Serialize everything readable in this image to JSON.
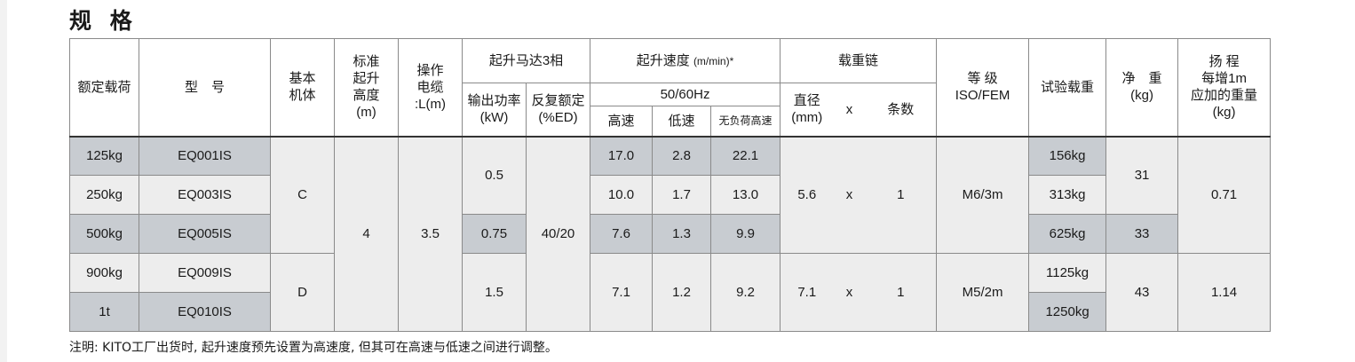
{
  "title": "规 格",
  "headers": {
    "rated_load": "额定载荷",
    "model": "型　号",
    "base_unit": [
      "基本",
      "机体"
    ],
    "std_lift": [
      "标准",
      "起升",
      "高度",
      "(m)"
    ],
    "cable": [
      "操作",
      "电缆",
      ":L(m)"
    ],
    "motor": "起升马达3相",
    "motor_power": [
      "输出功率",
      "(kW)"
    ],
    "motor_ed": [
      "反复额定",
      "(%ED)"
    ],
    "speed_main": "起升速度",
    "speed_unit": "(m/min)*",
    "speed_hz": "50/60Hz",
    "speed_high": "高速",
    "speed_low": "低速",
    "speed_noload": "无负荷高速",
    "chain": "载重链",
    "chain_dia": [
      "直径",
      "(mm)"
    ],
    "chain_x": "x",
    "chain_count": "条数",
    "grade": [
      "等 级",
      "ISO/FEM"
    ],
    "test_load": "试验载重",
    "weight": [
      "净　重",
      "(kg)"
    ],
    "extra": [
      "扬 程",
      "每增1m",
      "应加的重量",
      "(kg)"
    ]
  },
  "rows": [
    {
      "load": "125kg",
      "model": "EQ001IS",
      "high": "17.0",
      "low": "2.8",
      "noload": "22.1",
      "test": "156kg"
    },
    {
      "load": "250kg",
      "model": "EQ003IS",
      "high": "10.0",
      "low": "1.7",
      "noload": "13.0",
      "test": "313kg"
    },
    {
      "load": "500kg",
      "model": "EQ005IS",
      "high": "7.6",
      "low": "1.3",
      "noload": "9.9",
      "test": "625kg"
    },
    {
      "load": "900kg",
      "model": "EQ009IS",
      "test": "1125kg"
    },
    {
      "load": "1t",
      "model": "EQ010IS",
      "test": "1250kg"
    }
  ],
  "merged": {
    "base_c": "C",
    "base_d": "D",
    "lift": "4",
    "cable": "3.5",
    "power_a": "0.5",
    "power_b": "0.75",
    "power_c": "1.5",
    "ed": "40/20",
    "speed_d": {
      "high": "7.1",
      "low": "1.2",
      "noload": "9.2"
    },
    "chain_a": {
      "dia": "5.6",
      "x": "x",
      "count": "1"
    },
    "chain_b": {
      "dia": "7.1",
      "x": "x",
      "count": "1"
    },
    "grade_a": "M6/3m",
    "grade_b": "M5/2m",
    "weight_a": "31",
    "weight_b": "33",
    "weight_c": "43",
    "extra_a": "0.71",
    "extra_b": "1.14"
  },
  "note": "注明: KITO工厂出货时, 起升速度预先设置为高速度, 但其可在高速与低速之间进行调整。"
}
